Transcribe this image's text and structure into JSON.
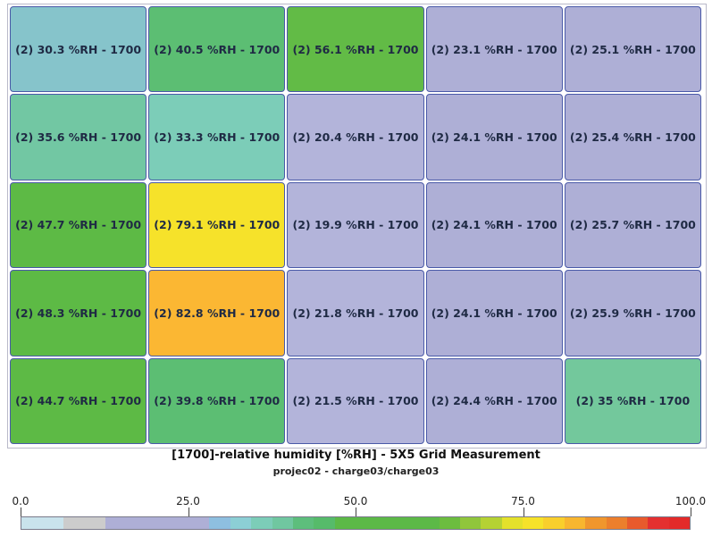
{
  "chart_data": {
    "type": "heatmap",
    "title": "[1700]-relative humidity [%RH] - 5X5 Grid Measurement",
    "subtitle": "projec02 - charge03/charge03",
    "unit": "%RH",
    "cell_prefix": "(2)",
    "sensor_id": "1700",
    "rows": [
      [
        30.3,
        40.5,
        56.1,
        23.1,
        25.1
      ],
      [
        35.6,
        33.3,
        20.4,
        24.1,
        25.4
      ],
      [
        47.7,
        79.1,
        19.9,
        24.1,
        25.7
      ],
      [
        48.3,
        82.8,
        21.8,
        24.1,
        25.9
      ],
      [
        44.7,
        39.8,
        21.5,
        24.4,
        35
      ]
    ],
    "cell_colors": [
      [
        "#86c4cb",
        "#5cbe73",
        "#62bb46",
        "#aeafd6",
        "#aeafd6"
      ],
      [
        "#72c7a3",
        "#7ccdb8",
        "#b3b4da",
        "#aeafd6",
        "#aeafd6"
      ],
      [
        "#5dba45",
        "#f6e22a",
        "#b3b4da",
        "#aeafd6",
        "#aeafd6"
      ],
      [
        "#5dba45",
        "#fbb733",
        "#b3b4da",
        "#aeafd6",
        "#aeafd6"
      ],
      [
        "#5dba45",
        "#5cbe73",
        "#b3b4da",
        "#aeafd6",
        "#73c89c"
      ]
    ],
    "colorbar": {
      "min": 0.0,
      "max": 100.0,
      "ticks": [
        {
          "value": 0,
          "label": "0.0"
        },
        {
          "value": 25,
          "label": "25.0"
        },
        {
          "value": 50,
          "label": "50.0"
        },
        {
          "value": 75,
          "label": "75.0"
        },
        {
          "value": 100,
          "label": "100.0"
        }
      ],
      "colors": [
        "#c9e3ec",
        "#c9e3ec",
        "#cccccc",
        "#cccccc",
        "#aeafd6",
        "#aeafd6",
        "#aeafd6",
        "#aeafd6",
        "#aeafd6",
        "#8ebfe0",
        "#8ccfd5",
        "#7ccdb8",
        "#70c7a0",
        "#5dbe7c",
        "#56bb6a",
        "#5cb947",
        "#5cb947",
        "#5cb947",
        "#5cb947",
        "#5cb947",
        "#6cbd3f",
        "#90c63c",
        "#b5d233",
        "#e4e12b",
        "#f6e22a",
        "#f9cf2c",
        "#f8b62f",
        "#f0962d",
        "#ec7f2c",
        "#e85a2c",
        "#e43030",
        "#e32a2a"
      ]
    }
  }
}
